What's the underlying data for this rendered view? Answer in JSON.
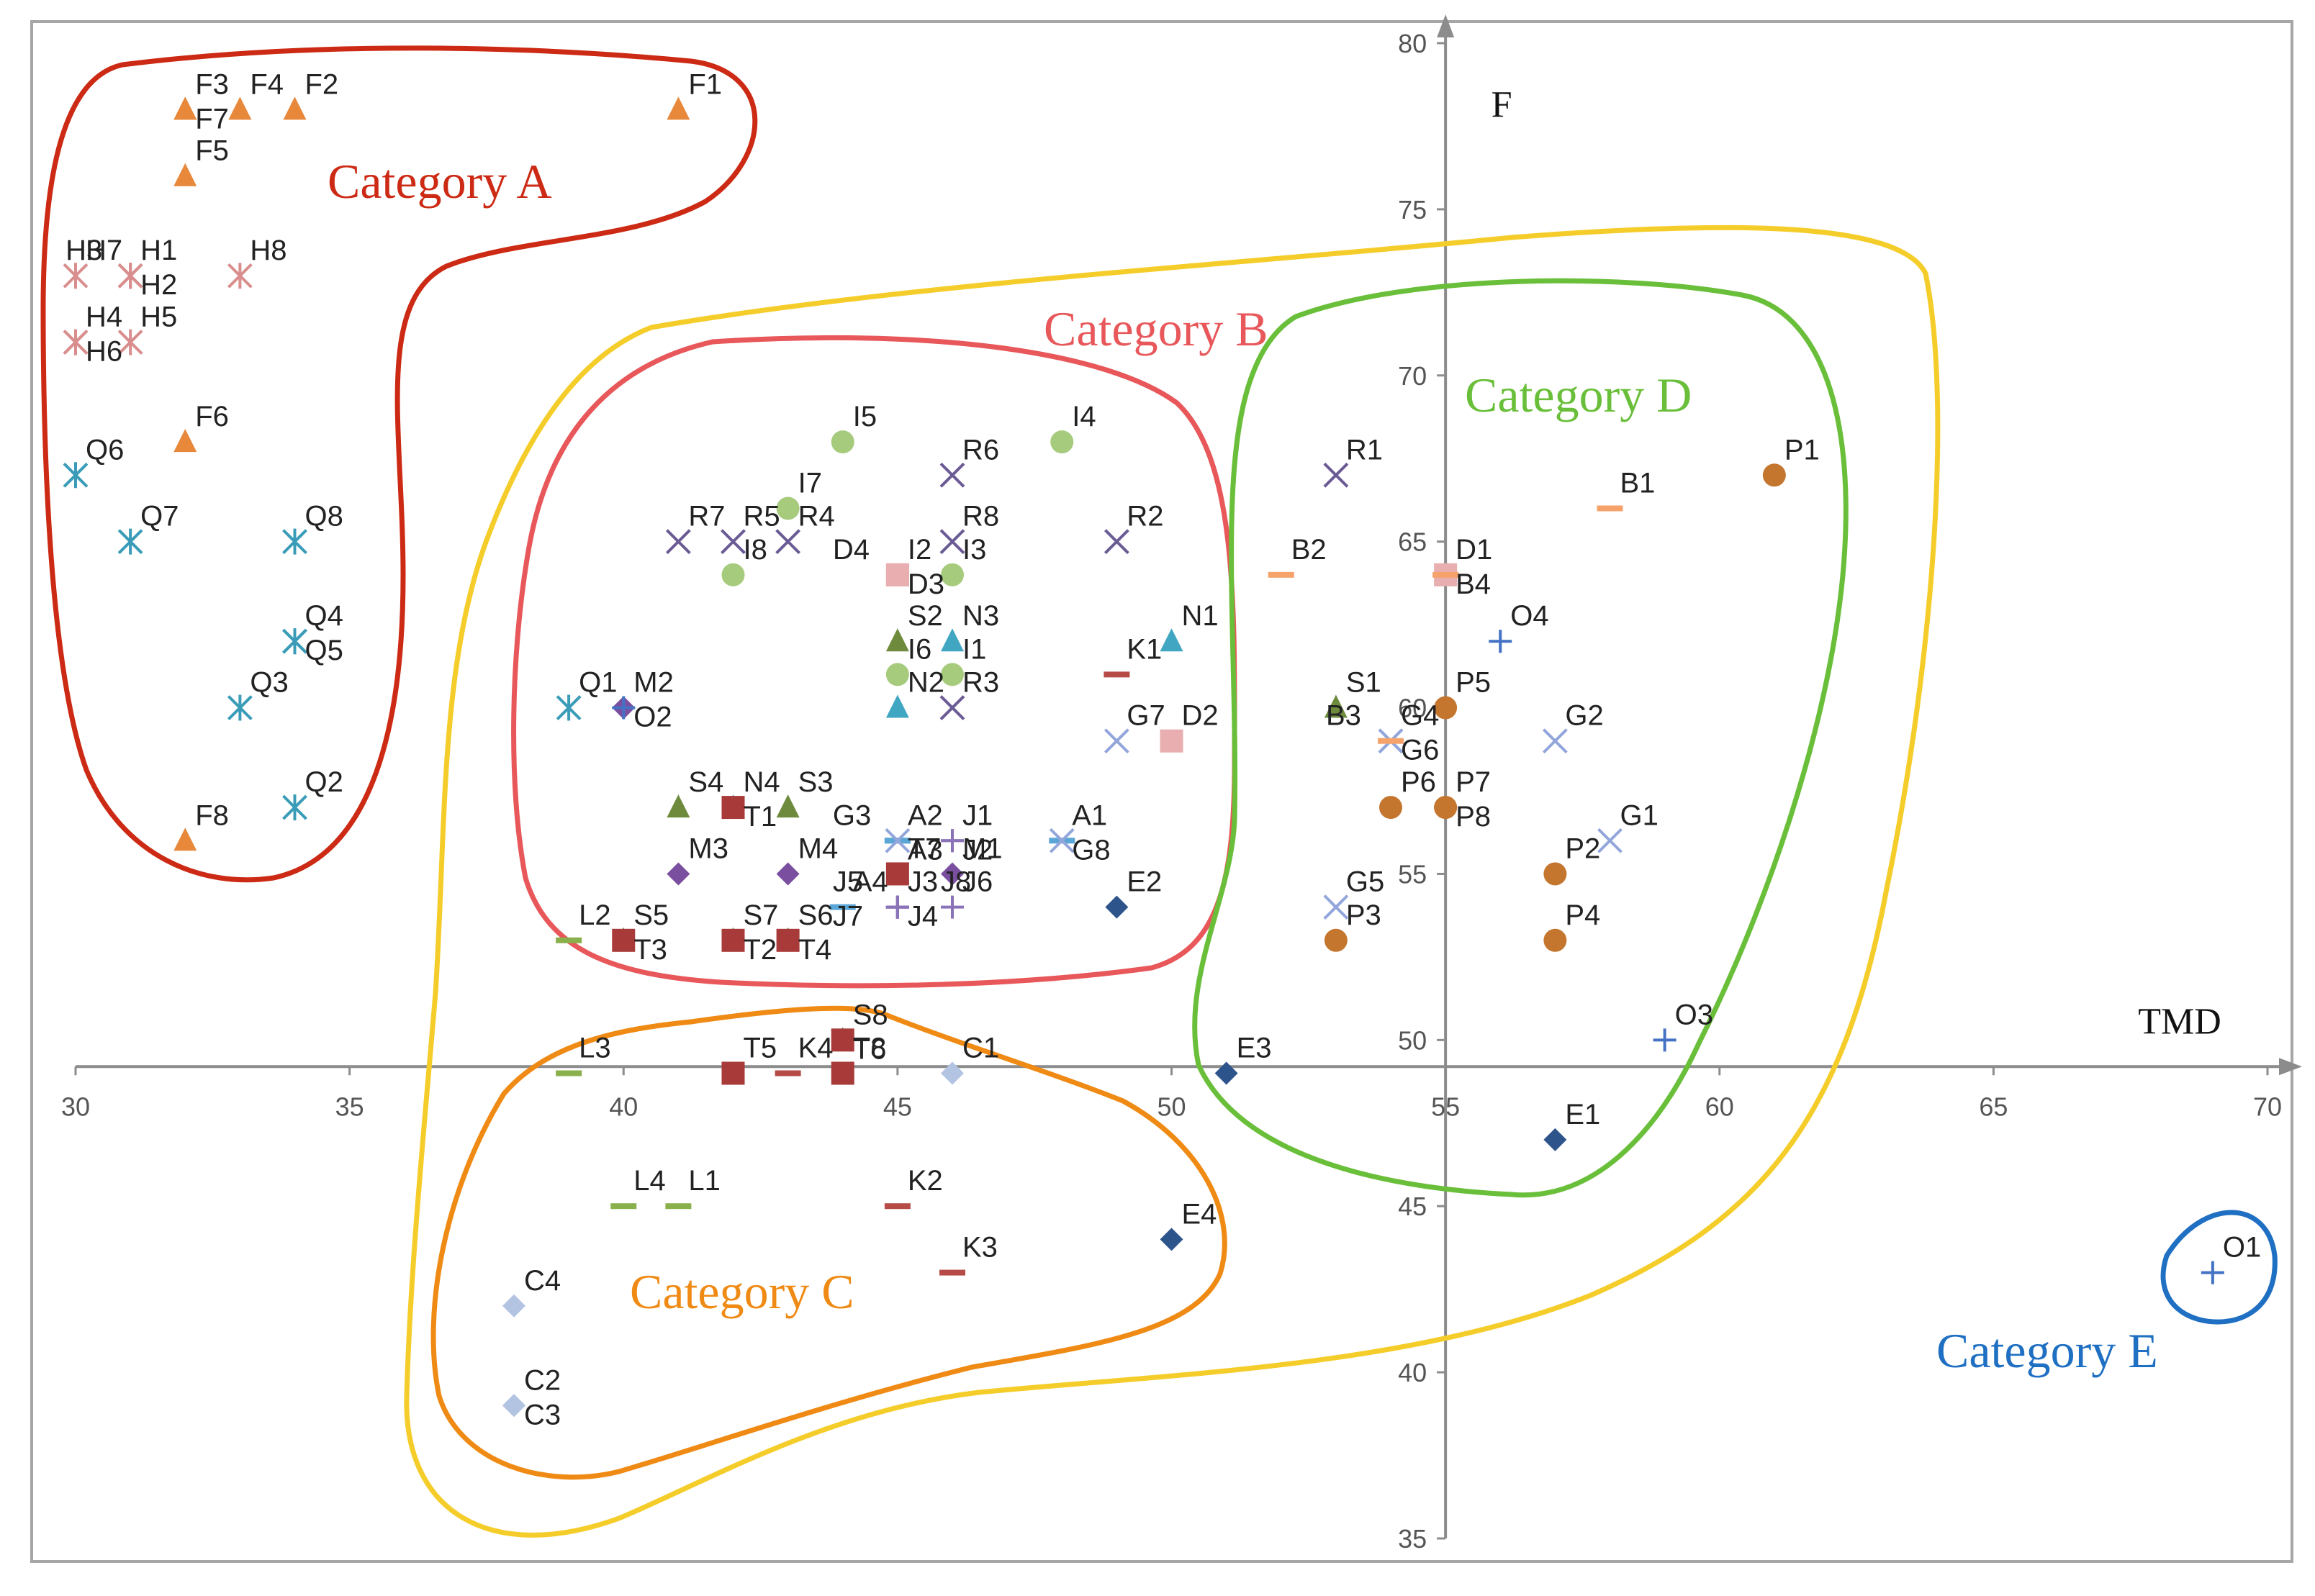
{
  "chart_data": {
    "type": "scatter",
    "title": "",
    "xlabel": "TMD",
    "ylabel": "F",
    "xlim": [
      30,
      70
    ],
    "ylim": [
      35,
      80
    ],
    "x_ticks": [
      30,
      35,
      40,
      45,
      50,
      55,
      60,
      65,
      70
    ],
    "y_ticks": [
      35,
      40,
      45,
      50,
      55,
      60,
      65,
      70,
      75,
      80
    ],
    "grid": false,
    "colors": {
      "F": "#e8883a",
      "H": "#d98e8e",
      "Q": "#3a9cb8",
      "I": "#a6cb7c",
      "R": "#6b5b95",
      "D": "#e8aeb0",
      "N": "#41a6c1",
      "S": "#6e8b3d",
      "T": "#a83a3a",
      "M": "#7b4fa0",
      "A": "#5aa6d6",
      "G": "#93a6dc",
      "J": "#8a73b8",
      "K": "#b54a46",
      "L": "#8ab04c",
      "E": "#2e548c",
      "B": "#f5a36b",
      "P": "#c4762f",
      "O": "#4472c4",
      "C": "#b3c4e2"
    },
    "groups": [
      {
        "name": "F",
        "marker": "triangle",
        "points": [
          {
            "label": "F1",
            "x": 41,
            "y": 78
          },
          {
            "label": "F2",
            "x": 34,
            "y": 78
          },
          {
            "label": "F3",
            "x": 32,
            "y": 78
          },
          {
            "label": "F4",
            "x": 33,
            "y": 78
          },
          {
            "label": "F5",
            "x": 32,
            "y": 76
          },
          {
            "label": "F6",
            "x": 32,
            "y": 68
          },
          {
            "label": "F7",
            "x": 32,
            "y": 78
          },
          {
            "label": "F8",
            "x": 32,
            "y": 56
          }
        ]
      },
      {
        "name": "H",
        "marker": "star",
        "points": [
          {
            "label": "H1",
            "x": 31,
            "y": 73
          },
          {
            "label": "H2",
            "x": 31,
            "y": 73
          },
          {
            "label": "H3",
            "x": 31,
            "y": 73
          },
          {
            "label": "H4",
            "x": 30,
            "y": 71
          },
          {
            "label": "H5",
            "x": 31,
            "y": 71
          },
          {
            "label": "H6",
            "x": 30,
            "y": 71
          },
          {
            "label": "H7",
            "x": 30,
            "y": 73
          },
          {
            "label": "H8",
            "x": 33,
            "y": 73
          }
        ]
      },
      {
        "name": "Q",
        "marker": "star",
        "points": [
          {
            "label": "Q1",
            "x": 39,
            "y": 60
          },
          {
            "label": "Q2",
            "x": 34,
            "y": 57
          },
          {
            "label": "Q3",
            "x": 33,
            "y": 60
          },
          {
            "label": "Q4",
            "x": 34,
            "y": 62
          },
          {
            "label": "Q5",
            "x": 34,
            "y": 62
          },
          {
            "label": "Q6",
            "x": 30,
            "y": 67
          },
          {
            "label": "Q7",
            "x": 31,
            "y": 65
          },
          {
            "label": "Q8",
            "x": 34,
            "y": 65
          }
        ]
      },
      {
        "name": "I",
        "marker": "circle",
        "points": [
          {
            "label": "I1",
            "x": 46,
            "y": 61
          },
          {
            "label": "I2",
            "x": 45,
            "y": 64
          },
          {
            "label": "I3",
            "x": 46,
            "y": 64
          },
          {
            "label": "I4",
            "x": 48,
            "y": 68
          },
          {
            "label": "I5",
            "x": 44,
            "y": 68
          },
          {
            "label": "I6",
            "x": 45,
            "y": 61
          },
          {
            "label": "I7",
            "x": 43,
            "y": 66
          },
          {
            "label": "I8",
            "x": 42,
            "y": 64
          }
        ]
      },
      {
        "name": "R",
        "marker": "x",
        "points": [
          {
            "label": "R1",
            "x": 53,
            "y": 67
          },
          {
            "label": "R2",
            "x": 49,
            "y": 65
          },
          {
            "label": "R3",
            "x": 46,
            "y": 60
          },
          {
            "label": "R4",
            "x": 43,
            "y": 65
          },
          {
            "label": "R5",
            "x": 42,
            "y": 65
          },
          {
            "label": "R6",
            "x": 46,
            "y": 67
          },
          {
            "label": "R7",
            "x": 41,
            "y": 65
          },
          {
            "label": "R8",
            "x": 46,
            "y": 65
          }
        ]
      },
      {
        "name": "D",
        "marker": "square",
        "points": [
          {
            "label": "D1",
            "x": 55,
            "y": 64
          },
          {
            "label": "D2",
            "x": 50,
            "y": 59
          },
          {
            "label": "D3",
            "x": 45,
            "y": 64
          },
          {
            "label": "D4",
            "x": 45,
            "y": 64
          }
        ]
      },
      {
        "name": "N",
        "marker": "triangle",
        "points": [
          {
            "label": "N1",
            "x": 50,
            "y": 62
          },
          {
            "label": "N2",
            "x": 45,
            "y": 60
          },
          {
            "label": "N3",
            "x": 46,
            "y": 62
          },
          {
            "label": "N4",
            "x": 42,
            "y": 57
          }
        ]
      },
      {
        "name": "S",
        "marker": "triangle",
        "points": [
          {
            "label": "S1",
            "x": 53,
            "y": 60
          },
          {
            "label": "S2",
            "x": 45,
            "y": 62
          },
          {
            "label": "S3",
            "x": 43,
            "y": 57
          },
          {
            "label": "S4",
            "x": 41,
            "y": 57
          },
          {
            "label": "S5",
            "x": 40,
            "y": 53
          },
          {
            "label": "S6",
            "x": 43,
            "y": 53
          },
          {
            "label": "S7",
            "x": 42,
            "y": 53
          },
          {
            "label": "S8",
            "x": 44,
            "y": 50
          }
        ]
      },
      {
        "name": "T",
        "marker": "square",
        "points": [
          {
            "label": "T1",
            "x": 42,
            "y": 57
          },
          {
            "label": "T2",
            "x": 42,
            "y": 53
          },
          {
            "label": "T3",
            "x": 40,
            "y": 53
          },
          {
            "label": "T4",
            "x": 43,
            "y": 53
          },
          {
            "label": "T5",
            "x": 42,
            "y": 49
          },
          {
            "label": "T6",
            "x": 44,
            "y": 50
          },
          {
            "label": "T7",
            "x": 45,
            "y": 55
          },
          {
            "label": "T8",
            "x": 44,
            "y": 49
          }
        ]
      },
      {
        "name": "M",
        "marker": "diamond",
        "points": [
          {
            "label": "M1",
            "x": 46,
            "y": 55
          },
          {
            "label": "M2",
            "x": 40,
            "y": 60
          },
          {
            "label": "M3",
            "x": 41,
            "y": 55
          },
          {
            "label": "M4",
            "x": 43,
            "y": 55
          }
        ]
      },
      {
        "name": "A",
        "marker": "dash",
        "points": [
          {
            "label": "A1",
            "x": 48,
            "y": 56
          },
          {
            "label": "A2",
            "x": 45,
            "y": 56
          },
          {
            "label": "A3",
            "x": 45,
            "y": 56
          },
          {
            "label": "A4",
            "x": 44,
            "y": 54
          }
        ]
      },
      {
        "name": "G",
        "marker": "x",
        "points": [
          {
            "label": "G1",
            "x": 58,
            "y": 56
          },
          {
            "label": "G2",
            "x": 57,
            "y": 59
          },
          {
            "label": "G3",
            "x": 45,
            "y": 56
          },
          {
            "label": "G4",
            "x": 54,
            "y": 59
          },
          {
            "label": "G5",
            "x": 53,
            "y": 54
          },
          {
            "label": "G6",
            "x": 54,
            "y": 59
          },
          {
            "label": "G7",
            "x": 49,
            "y": 59
          },
          {
            "label": "G8",
            "x": 48,
            "y": 56
          }
        ]
      },
      {
        "name": "J",
        "marker": "plus",
        "points": [
          {
            "label": "J1",
            "x": 46,
            "y": 56
          },
          {
            "label": "J2",
            "x": 46,
            "y": 56
          },
          {
            "label": "J3",
            "x": 45,
            "y": 54
          },
          {
            "label": "J4",
            "x": 45,
            "y": 54
          },
          {
            "label": "J5",
            "x": 45,
            "y": 54
          },
          {
            "label": "J6",
            "x": 46,
            "y": 54
          },
          {
            "label": "J7",
            "x": 45,
            "y": 54
          },
          {
            "label": "J8",
            "x": 45,
            "y": 54
          }
        ]
      },
      {
        "name": "K",
        "marker": "dash",
        "points": [
          {
            "label": "K1",
            "x": 49,
            "y": 61
          },
          {
            "label": "K2",
            "x": 45,
            "y": 45
          },
          {
            "label": "K3",
            "x": 46,
            "y": 43
          },
          {
            "label": "K4",
            "x": 43,
            "y": 49
          }
        ]
      },
      {
        "name": "L",
        "marker": "dash",
        "points": [
          {
            "label": "L1",
            "x": 41,
            "y": 45
          },
          {
            "label": "L2",
            "x": 39,
            "y": 53
          },
          {
            "label": "L3",
            "x": 39,
            "y": 49
          },
          {
            "label": "L4",
            "x": 40,
            "y": 45
          }
        ]
      },
      {
        "name": "E",
        "marker": "diamond",
        "points": [
          {
            "label": "E1",
            "x": 57,
            "y": 47
          },
          {
            "label": "E2",
            "x": 49,
            "y": 54
          },
          {
            "label": "E3",
            "x": 51,
            "y": 49
          },
          {
            "label": "E4",
            "x": 50,
            "y": 44
          }
        ]
      },
      {
        "name": "B",
        "marker": "dash",
        "points": [
          {
            "label": "B1",
            "x": 58,
            "y": 66
          },
          {
            "label": "B2",
            "x": 52,
            "y": 64
          },
          {
            "label": "B3",
            "x": 54,
            "y": 59
          },
          {
            "label": "B4",
            "x": 55,
            "y": 64
          }
        ]
      },
      {
        "name": "P",
        "marker": "circle",
        "points": [
          {
            "label": "P1",
            "x": 61,
            "y": 67
          },
          {
            "label": "P2",
            "x": 57,
            "y": 55
          },
          {
            "label": "P3",
            "x": 53,
            "y": 53
          },
          {
            "label": "P4",
            "x": 57,
            "y": 53
          },
          {
            "label": "P5",
            "x": 55,
            "y": 60
          },
          {
            "label": "P6",
            "x": 54,
            "y": 57
          },
          {
            "label": "P7",
            "x": 55,
            "y": 57
          },
          {
            "label": "P8",
            "x": 55,
            "y": 57
          }
        ]
      },
      {
        "name": "O",
        "marker": "plus",
        "points": [
          {
            "label": "O1",
            "x": 69,
            "y": 43
          },
          {
            "label": "O2",
            "x": 40,
            "y": 60
          },
          {
            "label": "O3",
            "x": 59,
            "y": 50
          },
          {
            "label": "O4",
            "x": 56,
            "y": 62
          }
        ]
      },
      {
        "name": "C",
        "marker": "diamond",
        "points": [
          {
            "label": "C1",
            "x": 46,
            "y": 49
          },
          {
            "label": "C2",
            "x": 38,
            "y": 39
          },
          {
            "label": "C3",
            "x": 38,
            "y": 39
          },
          {
            "label": "C4",
            "x": 38,
            "y": 42
          }
        ]
      }
    ],
    "annotations": [
      {
        "text": "Category A",
        "color": "#cc2a14"
      },
      {
        "text": "Category B",
        "color": "#e8575a"
      },
      {
        "text": "Category C",
        "color": "#ef8a14"
      },
      {
        "text": "Category D",
        "color": "#6abf3a"
      },
      {
        "text": "Category E",
        "color": "#1f6fc2"
      }
    ],
    "frame_color": "#a6a6a6",
    "axis_color": "#8c8c8c"
  }
}
